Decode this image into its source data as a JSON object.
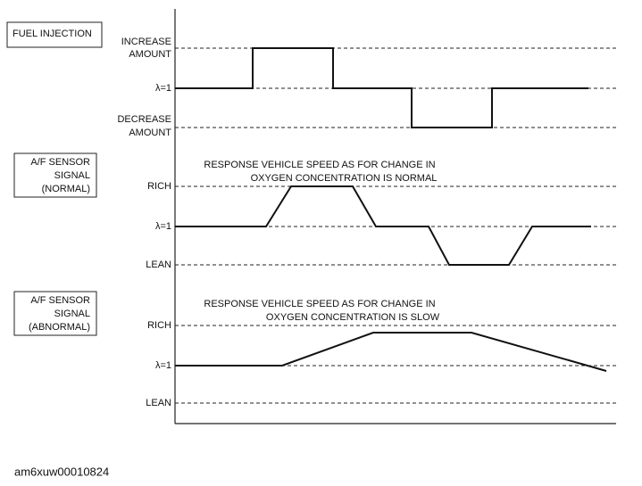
{
  "panels": [
    {
      "title": [
        "FUEL INJECTION"
      ],
      "levels": [
        [
          "INCREASE",
          "AMOUNT"
        ],
        [
          "λ=1"
        ],
        [
          "DECREASE",
          "AMOUNT"
        ]
      ]
    },
    {
      "title": [
        "A/F SENSOR",
        "SIGNAL",
        "(NORMAL)"
      ],
      "caption": [
        "RESPONSE VEHICLE SPEED AS FOR CHANGE IN",
        "OXYGEN CONCENTRATION IS NORMAL"
      ],
      "levels": [
        [
          "RICH"
        ],
        [
          "λ=1"
        ],
        [
          "LEAN"
        ]
      ]
    },
    {
      "title": [
        "A/F SENSOR",
        "SIGNAL",
        "(ABNORMAL)"
      ],
      "caption": [
        "RESPONSE VEHICLE SPEED AS FOR CHANGE IN",
        "OXYGEN CONCENTRATION IS SLOW"
      ],
      "levels": [
        [
          "RICH"
        ],
        [
          "λ=1"
        ],
        [
          "LEAN"
        ]
      ]
    }
  ],
  "footer": "am6xuw00010824"
}
